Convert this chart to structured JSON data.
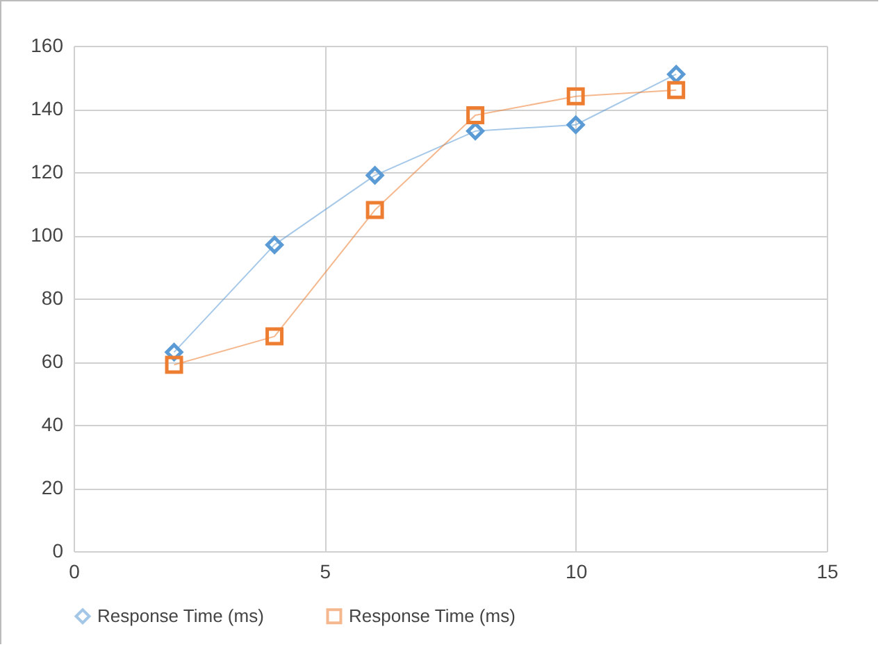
{
  "chart_data": {
    "type": "line",
    "x": [
      2,
      4,
      6,
      8,
      10,
      12
    ],
    "series": [
      {
        "name": "Response Time (ms)",
        "color": "#5b9bd5",
        "marker": "diamond",
        "values": [
          63,
          97,
          119,
          133,
          135,
          151
        ]
      },
      {
        "name": "Response Time (ms)",
        "color": "#ed7d31",
        "marker": "square",
        "values": [
          59,
          68,
          108,
          138,
          144,
          146
        ]
      }
    ],
    "xlim": [
      0,
      15
    ],
    "xticks": [
      0,
      5,
      10,
      15
    ],
    "ylim": [
      0,
      160
    ],
    "yticks": [
      0,
      20,
      40,
      60,
      80,
      100,
      120,
      140,
      160
    ],
    "grid": true,
    "legend": "bottom"
  }
}
